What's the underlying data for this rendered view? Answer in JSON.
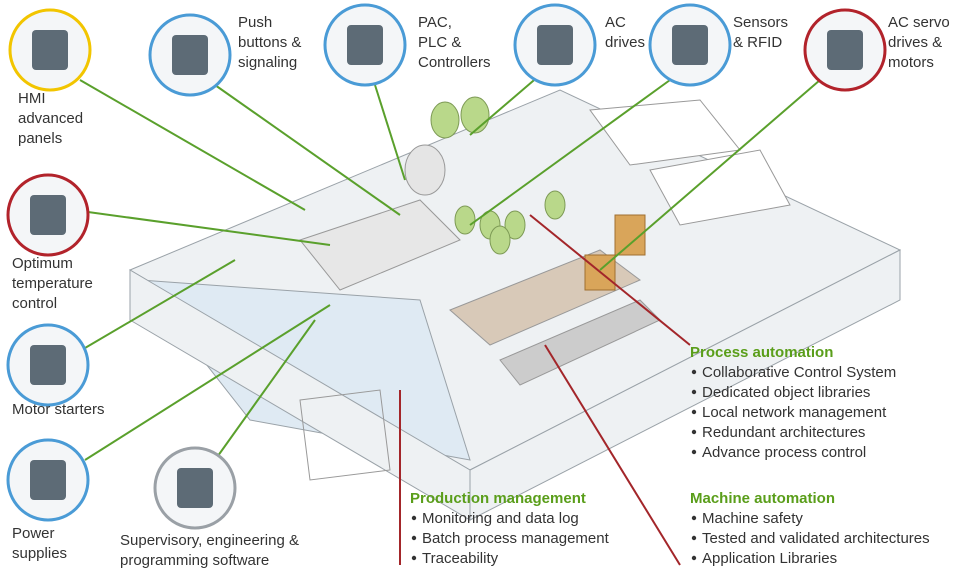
{
  "nodes": [
    {
      "label": [
        "HMI",
        "advanced",
        "panels"
      ]
    },
    {
      "label": [
        "Push",
        "buttons &",
        "signaling"
      ]
    },
    {
      "label": [
        "PAC,",
        "PLC &",
        "Controllers"
      ]
    },
    {
      "label": [
        "AC",
        "drives"
      ]
    },
    {
      "label": [
        "Sensors",
        "& RFID"
      ]
    },
    {
      "label": [
        "AC servo",
        "drives &",
        "motors"
      ]
    },
    {
      "label": [
        "Optimum",
        "temperature",
        "control"
      ]
    },
    {
      "label": [
        "Motor starters"
      ]
    },
    {
      "label": [
        "Power",
        "supplies"
      ]
    },
    {
      "label": [
        "Supervisory, engineering &",
        "programming software"
      ]
    }
  ],
  "sections": [
    {
      "title": "Process automation",
      "items": [
        "Collaborative Control System",
        "Dedicated object libraries",
        "Local network management",
        "Redundant architectures",
        "Advance process control"
      ]
    },
    {
      "title": "Production management",
      "items": [
        "Monitoring and data log",
        "Batch process management",
        "Traceability"
      ]
    },
    {
      "title": "Machine automation",
      "items": [
        "Machine safety",
        "Tested and validated architectures",
        "Application Libraries"
      ]
    }
  ]
}
